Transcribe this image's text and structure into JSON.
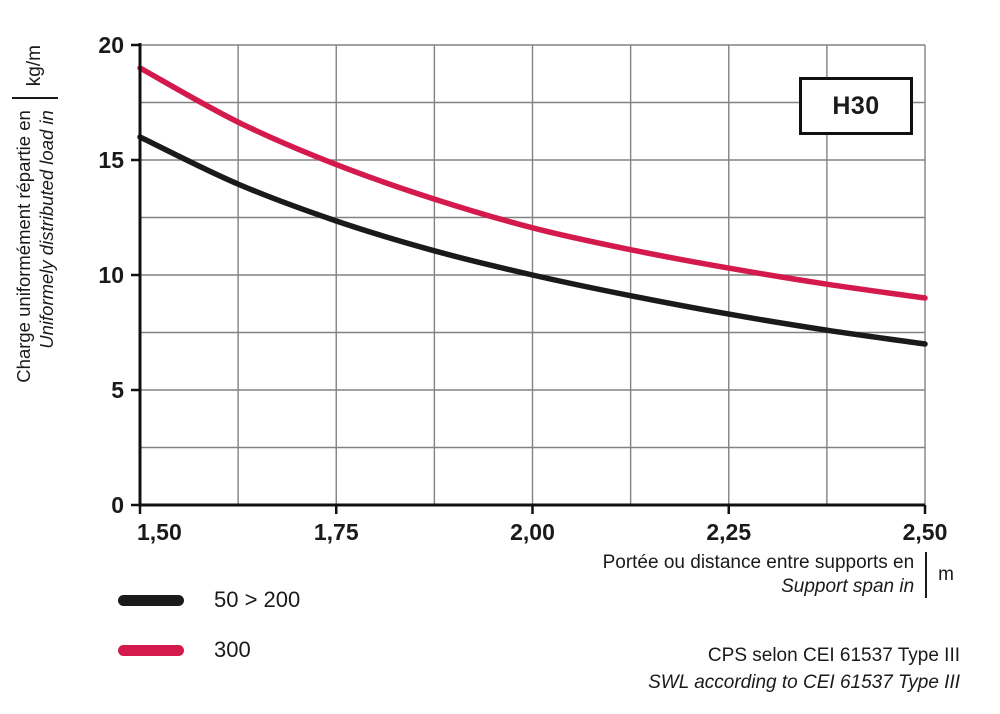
{
  "chart_data": {
    "type": "line",
    "badge": "H30",
    "y_axis": {
      "title_fr": "Charge uniformément répartie en",
      "title_en": "Uniformely distributed load in",
      "unit": "kg/m",
      "min": 0,
      "max": 20,
      "grid_step": 2.5,
      "tick_values": [
        0,
        5,
        10,
        15,
        20
      ],
      "tick_labels": [
        "0",
        "5",
        "10",
        "15",
        "20"
      ]
    },
    "x_axis": {
      "title_fr": "Portée ou distance entre supports en",
      "title_en": "Support span in",
      "unit": "m",
      "min": 1.5,
      "max": 2.5,
      "grid_step": 0.125,
      "tick_values": [
        1.5,
        1.75,
        2.0,
        2.25,
        2.5
      ],
      "tick_labels": [
        "1,50",
        "1,75",
        "2,00",
        "2,25",
        "2,50"
      ]
    },
    "series": [
      {
        "name": "50 > 200",
        "color": "#1a1a1a",
        "x": [
          1.5,
          1.625,
          1.75,
          1.875,
          2.0,
          2.125,
          2.25,
          2.375,
          2.5
        ],
        "y": [
          16.0,
          13.95,
          12.35,
          11.05,
          10.0,
          9.1,
          8.3,
          7.6,
          7.0
        ]
      },
      {
        "name": "300",
        "color": "#d41a4c",
        "x": [
          1.5,
          1.625,
          1.75,
          1.875,
          2.0,
          2.125,
          2.25,
          2.375,
          2.5
        ],
        "y": [
          19.0,
          16.65,
          14.8,
          13.3,
          12.05,
          11.1,
          10.3,
          9.6,
          9.0
        ]
      }
    ],
    "footer": {
      "line_fr": "CPS selon CEI 61537 Type III",
      "line_en": "SWL according to CEI 61537 Type III"
    },
    "colors": {
      "grid": "#828282",
      "axis": "#111111"
    }
  }
}
